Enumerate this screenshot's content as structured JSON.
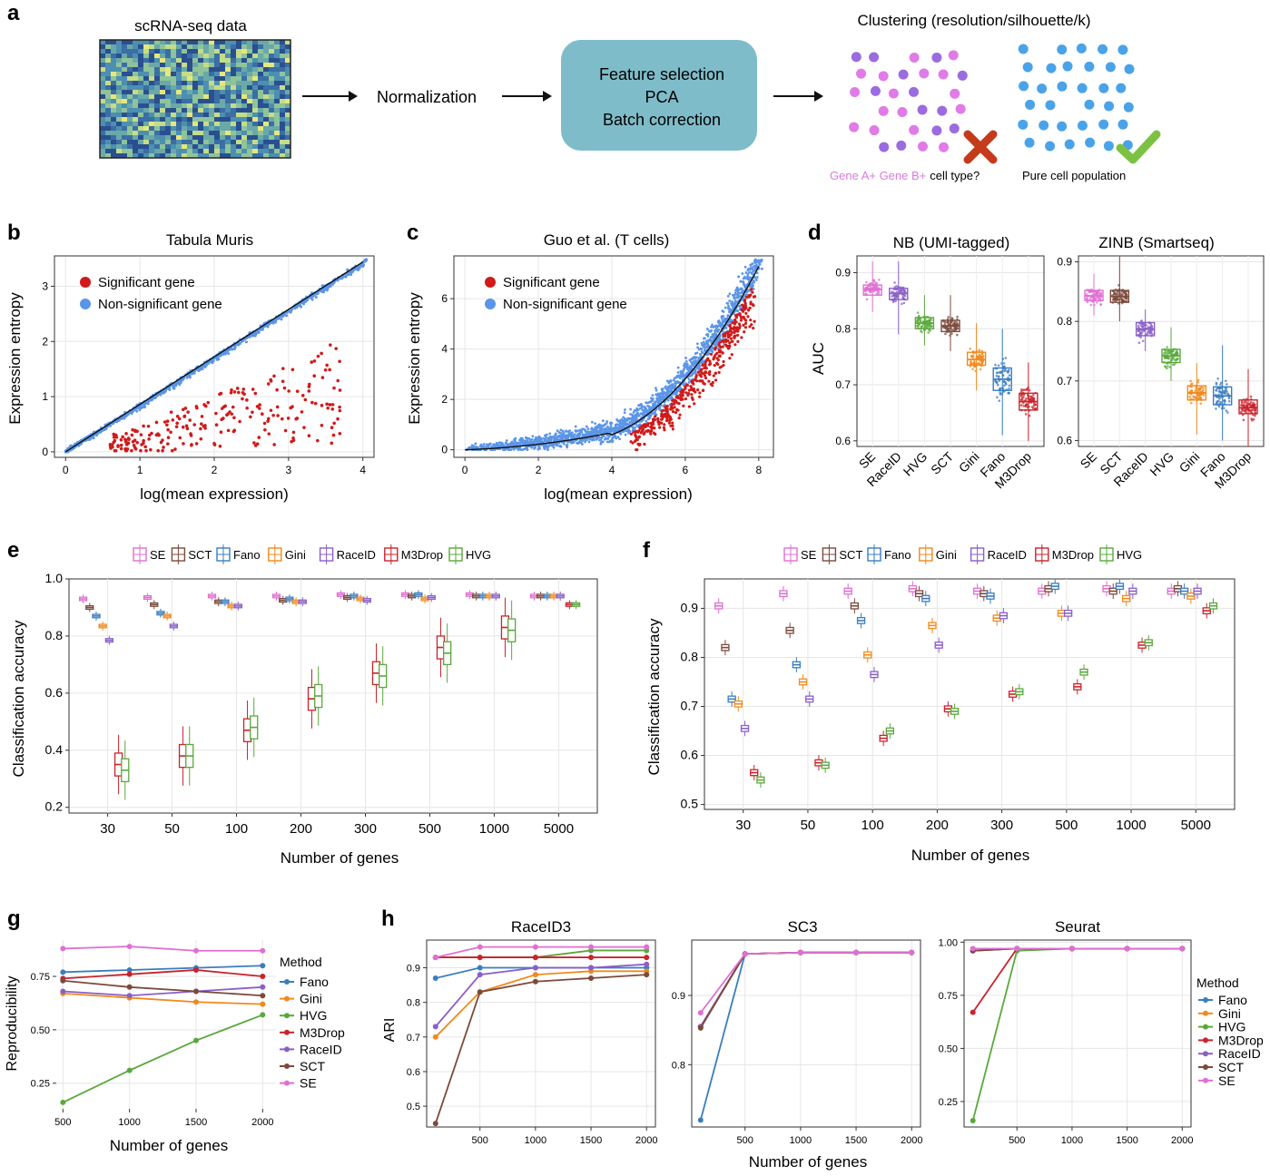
{
  "colors": {
    "SE": "#e06fd2",
    "SCT": "#7b4a3c",
    "Fano": "#3a7dc0",
    "Gini": "#f08a1e",
    "RaceID": "#8a5fc8",
    "M3Drop": "#c9232b",
    "HVG": "#5aa83c",
    "sig": "#d11a1a",
    "nonsig": "#5b95e8",
    "box": "#7fbcc9"
  },
  "panel_a": {
    "letter": "a",
    "matrix_title": "scRNA-seq data",
    "step_normalization": "Normalization",
    "box_lines": [
      "Feature selection",
      "PCA",
      "Batch correction"
    ],
    "clustering_title": "Clustering (resolution/silhouette/k)",
    "bad_caption_colored": "Gene A+ Gene B+",
    "bad_caption_rest": "cell type?",
    "good_caption": "Pure cell population",
    "bad_icon": "cross-icon",
    "good_icon": "check-icon"
  },
  "panel_b": {
    "letter": "b",
    "title": "Tabula Muris",
    "xlabel": "log(mean expression)",
    "ylabel": "Expression entropy",
    "legend": [
      "Significant gene",
      "Non-significant gene"
    ],
    "xticks": [
      0,
      1,
      2,
      3,
      4
    ],
    "yticks": [
      0,
      1,
      2,
      3
    ]
  },
  "panel_c": {
    "letter": "c",
    "title": "Guo et al. (T cells)",
    "xlabel": "log(mean expression)",
    "ylabel": "Expression entropy",
    "legend": [
      "Significant gene",
      "Non-significant gene"
    ],
    "xticks": [
      0,
      2,
      4,
      6,
      8
    ],
    "yticks": [
      0,
      2,
      4,
      6
    ]
  },
  "panel_d": {
    "letter": "d",
    "ylabel": "AUC"
  },
  "panel_e": {
    "letter": "e",
    "xlabel": "Number of genes",
    "ylabel": "Classification accuracy",
    "legend": [
      "SE",
      "SCT",
      "Fano",
      "Gini",
      "RaceID",
      "M3Drop",
      "HVG"
    ]
  },
  "panel_f": {
    "letter": "f",
    "xlabel": "Number of genes",
    "ylabel": "Classification accuracy",
    "legend": [
      "SE",
      "SCT",
      "Fano",
      "Gini",
      "RaceID",
      "M3Drop",
      "HVG"
    ]
  },
  "panel_g": {
    "letter": "g",
    "xlabel": "Number of genes",
    "ylabel": "Reproducibility",
    "legend_title": "Method"
  },
  "panel_h": {
    "letter": "h",
    "xlabel": "Number of genes",
    "ylabel": "ARI",
    "legend_title": "Method"
  },
  "chart_data": [
    {
      "id": "d1",
      "type": "box",
      "title": "NB (UMI-tagged)",
      "ylabel": "AUC",
      "ylim": [
        0.59,
        0.93
      ],
      "yticks": [
        0.6,
        0.7,
        0.8,
        0.9
      ],
      "categories": [
        "SE",
        "RaceID",
        "HVG",
        "SCT",
        "Gini",
        "Fano",
        "M3Drop"
      ],
      "medians": [
        0.87,
        0.863,
        0.81,
        0.805,
        0.745,
        0.71,
        0.67
      ],
      "q1": [
        0.86,
        0.852,
        0.8,
        0.795,
        0.735,
        0.69,
        0.655
      ],
      "q3": [
        0.878,
        0.872,
        0.82,
        0.815,
        0.758,
        0.73,
        0.685
      ],
      "min": [
        0.83,
        0.79,
        0.77,
        0.76,
        0.69,
        0.61,
        0.6
      ],
      "max": [
        0.92,
        0.92,
        0.86,
        0.86,
        0.81,
        0.8,
        0.74
      ]
    },
    {
      "id": "d2",
      "type": "box",
      "title": "ZINB (Smartseq)",
      "ylim": [
        0.59,
        0.91
      ],
      "yticks": [
        0.6,
        0.7,
        0.8,
        0.9
      ],
      "categories": [
        "SE",
        "SCT",
        "RaceID",
        "HVG",
        "Gini",
        "Fano",
        "M3Drop"
      ],
      "medians": [
        0.843,
        0.842,
        0.787,
        0.742,
        0.68,
        0.675,
        0.655
      ],
      "q1": [
        0.835,
        0.832,
        0.776,
        0.731,
        0.668,
        0.66,
        0.645
      ],
      "q3": [
        0.852,
        0.852,
        0.798,
        0.753,
        0.692,
        0.69,
        0.668
      ],
      "min": [
        0.81,
        0.8,
        0.75,
        0.7,
        0.61,
        0.6,
        0.59
      ],
      "max": [
        0.88,
        0.91,
        0.82,
        0.79,
        0.73,
        0.76,
        0.72
      ]
    },
    {
      "id": "e",
      "type": "box",
      "xlabel": "Number of genes",
      "ylabel": "Classification accuracy",
      "ylim": [
        0.18,
        1.0
      ],
      "yticks": [
        0.2,
        0.4,
        0.6,
        0.8,
        1.0
      ],
      "categories": [
        "30",
        "50",
        "100",
        "200",
        "300",
        "500",
        "1000",
        "5000"
      ],
      "series": [
        {
          "name": "SE",
          "medians": [
            0.93,
            0.935,
            0.94,
            0.94,
            0.945,
            0.945,
            0.945,
            0.94
          ]
        },
        {
          "name": "SCT",
          "medians": [
            0.9,
            0.91,
            0.92,
            0.925,
            0.935,
            0.94,
            0.94,
            0.94
          ]
        },
        {
          "name": "Fano",
          "medians": [
            0.87,
            0.88,
            0.92,
            0.93,
            0.94,
            0.945,
            0.94,
            0.94
          ]
        },
        {
          "name": "Gini",
          "medians": [
            0.835,
            0.87,
            0.905,
            0.92,
            0.93,
            0.93,
            0.94,
            0.94
          ]
        },
        {
          "name": "RaceID",
          "medians": [
            0.785,
            0.835,
            0.905,
            0.92,
            0.925,
            0.935,
            0.94,
            0.94
          ]
        },
        {
          "name": "M3Drop",
          "medians": [
            0.35,
            0.38,
            0.47,
            0.58,
            0.67,
            0.76,
            0.83,
            0.91
          ]
        },
        {
          "name": "HVG",
          "medians": [
            0.33,
            0.38,
            0.48,
            0.59,
            0.66,
            0.74,
            0.82,
            0.91
          ]
        }
      ]
    },
    {
      "id": "f",
      "type": "box",
      "xlabel": "Number of genes",
      "ylabel": "Classification accuracy",
      "ylim": [
        0.49,
        0.96
      ],
      "yticks": [
        0.5,
        0.6,
        0.7,
        0.8,
        0.9
      ],
      "categories": [
        "30",
        "50",
        "100",
        "200",
        "300",
        "500",
        "1000",
        "5000"
      ],
      "series": [
        {
          "name": "SE",
          "medians": [
            0.905,
            0.93,
            0.935,
            0.94,
            0.935,
            0.935,
            0.94,
            0.935
          ]
        },
        {
          "name": "SCT",
          "medians": [
            0.82,
            0.855,
            0.905,
            0.93,
            0.93,
            0.94,
            0.935,
            0.94
          ]
        },
        {
          "name": "Fano",
          "medians": [
            0.715,
            0.785,
            0.875,
            0.92,
            0.925,
            0.945,
            0.945,
            0.935
          ]
        },
        {
          "name": "Gini",
          "medians": [
            0.705,
            0.75,
            0.805,
            0.865,
            0.88,
            0.89,
            0.92,
            0.925
          ]
        },
        {
          "name": "RaceID",
          "medians": [
            0.655,
            0.715,
            0.765,
            0.825,
            0.885,
            0.89,
            0.935,
            0.935
          ]
        },
        {
          "name": "M3Drop",
          "medians": [
            0.565,
            0.585,
            0.635,
            0.695,
            0.725,
            0.74,
            0.825,
            0.895
          ]
        },
        {
          "name": "HVG",
          "medians": [
            0.55,
            0.58,
            0.65,
            0.69,
            0.73,
            0.77,
            0.83,
            0.905
          ]
        }
      ]
    },
    {
      "id": "g",
      "type": "line",
      "xlabel": "Number of genes",
      "ylabel": "Reproducibility",
      "x": [
        500,
        1000,
        1500,
        2000
      ],
      "xlim": [
        450,
        2100
      ],
      "ylim": [
        0.13,
        0.92
      ],
      "yticks": [
        0.25,
        0.5,
        0.75
      ],
      "series": [
        {
          "name": "Fano",
          "values": [
            0.77,
            0.78,
            0.79,
            0.8
          ]
        },
        {
          "name": "Gini",
          "values": [
            0.67,
            0.65,
            0.63,
            0.62
          ]
        },
        {
          "name": "HVG",
          "values": [
            0.16,
            0.31,
            0.45,
            0.57
          ]
        },
        {
          "name": "M3Drop",
          "values": [
            0.74,
            0.76,
            0.78,
            0.75
          ]
        },
        {
          "name": "RaceID",
          "values": [
            0.68,
            0.66,
            0.68,
            0.7
          ]
        },
        {
          "name": "SCT",
          "values": [
            0.73,
            0.7,
            0.68,
            0.66
          ]
        },
        {
          "name": "SE",
          "values": [
            0.88,
            0.89,
            0.87,
            0.87
          ]
        }
      ]
    },
    {
      "id": "h1",
      "type": "line",
      "title": "RaceID3",
      "x": [
        100,
        500,
        1000,
        1500,
        2000
      ],
      "xlim": [
        20,
        2080
      ],
      "ylim": [
        0.44,
        0.98
      ],
      "yticks": [
        0.5,
        0.6,
        0.7,
        0.8,
        0.9
      ],
      "series": [
        {
          "name": "Fano",
          "values": [
            0.87,
            0.9,
            0.9,
            0.9,
            0.9
          ]
        },
        {
          "name": "Gini",
          "values": [
            0.7,
            0.83,
            0.88,
            0.89,
            0.89
          ]
        },
        {
          "name": "HVG",
          "values": [
            0.93,
            0.93,
            0.93,
            0.95,
            0.95
          ]
        },
        {
          "name": "M3Drop",
          "values": [
            0.93,
            0.93,
            0.93,
            0.93,
            0.93
          ]
        },
        {
          "name": "RaceID",
          "values": [
            0.73,
            0.88,
            0.9,
            0.9,
            0.91
          ]
        },
        {
          "name": "SCT",
          "values": [
            0.45,
            0.83,
            0.86,
            0.87,
            0.88
          ]
        },
        {
          "name": "SE",
          "values": [
            0.93,
            0.96,
            0.96,
            0.96,
            0.96
          ]
        }
      ]
    },
    {
      "id": "h2",
      "type": "line",
      "title": "SC3",
      "x": [
        100,
        500,
        1000,
        1500,
        2000
      ],
      "xlim": [
        20,
        2080
      ],
      "ylim": [
        0.71,
        0.98
      ],
      "yticks": [
        0.8,
        0.9
      ],
      "series": [
        {
          "name": "Fano",
          "values": [
            0.72,
            0.96,
            0.962,
            0.962,
            0.962
          ]
        },
        {
          "name": "Gini",
          "values": [
            0.855,
            0.96,
            0.962,
            0.962,
            0.962
          ]
        },
        {
          "name": "HVG",
          "values": [
            0.855,
            0.96,
            0.962,
            0.962,
            0.962
          ]
        },
        {
          "name": "M3Drop",
          "values": [
            0.855,
            0.96,
            0.962,
            0.962,
            0.962
          ]
        },
        {
          "name": "RaceID",
          "values": [
            0.855,
            0.96,
            0.962,
            0.962,
            0.962
          ]
        },
        {
          "name": "SCT",
          "values": [
            0.853,
            0.96,
            0.962,
            0.962,
            0.962
          ]
        },
        {
          "name": "SE",
          "values": [
            0.875,
            0.96,
            0.962,
            0.962,
            0.962
          ]
        }
      ]
    },
    {
      "id": "h3",
      "type": "line",
      "title": "Seurat",
      "x": [
        100,
        500,
        1000,
        1500,
        2000
      ],
      "xlim": [
        20,
        2080
      ],
      "ylim": [
        0.13,
        1.01
      ],
      "yticks": [
        0.25,
        0.5,
        0.75,
        1.0
      ],
      "series": [
        {
          "name": "Fano",
          "values": [
            0.96,
            0.97,
            0.97,
            0.97,
            0.97
          ]
        },
        {
          "name": "Gini",
          "values": [
            0.96,
            0.97,
            0.97,
            0.97,
            0.97
          ]
        },
        {
          "name": "HVG",
          "values": [
            0.16,
            0.96,
            0.97,
            0.97,
            0.97
          ]
        },
        {
          "name": "M3Drop",
          "values": [
            0.67,
            0.97,
            0.97,
            0.97,
            0.97
          ]
        },
        {
          "name": "RaceID",
          "values": [
            0.96,
            0.97,
            0.97,
            0.97,
            0.97
          ]
        },
        {
          "name": "SCT",
          "values": [
            0.96,
            0.97,
            0.97,
            0.97,
            0.97
          ]
        },
        {
          "name": "SE",
          "values": [
            0.97,
            0.97,
            0.97,
            0.97,
            0.97
          ]
        }
      ]
    }
  ]
}
